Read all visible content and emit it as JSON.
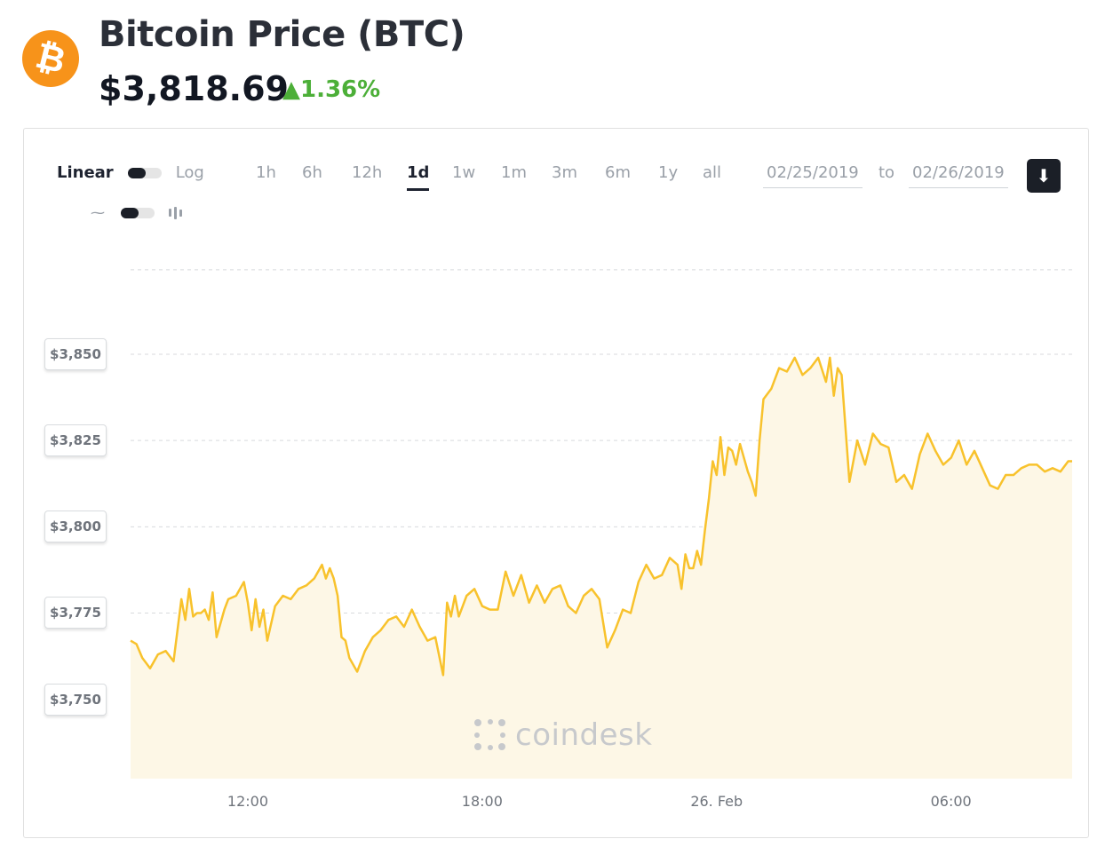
{
  "header": {
    "logo_symbol": "₿",
    "logo_color": "#f7931a",
    "title": "Bitcoin Price (BTC)",
    "price": "$3,818.69",
    "change": "▲1.36%",
    "change_color": "#4caf38"
  },
  "controls": {
    "scale_linear": "Linear",
    "scale_log": "Log",
    "ranges": [
      "1h",
      "6h",
      "12h",
      "1d",
      "1w",
      "1m",
      "3m",
      "6m",
      "1y",
      "all"
    ],
    "active_range": "1d",
    "date_from": "02/25/2019",
    "date_to_label": "to",
    "date_to": "02/26/2019",
    "download_icon": "download-icon"
  },
  "watermark": "coindesk",
  "chart_data": {
    "type": "area",
    "line_color": "#f8c22c",
    "fill_color": "#fdf7e6",
    "grid": "dashed horizontal",
    "y_ticks": [
      3750,
      3775,
      3800,
      3825,
      3850
    ],
    "y_tick_labels": [
      "$3,750",
      "$3,775",
      "$3,800",
      "$3,825",
      "$3,850"
    ],
    "ylim": [
      3727,
      3876
    ],
    "x_tick_labels": [
      "12:00",
      "18:00",
      "26. Feb",
      "06:00"
    ],
    "x_ticks": [
      3,
      9,
      15,
      21
    ],
    "xlim": [
      0,
      24.1
    ],
    "series": [
      {
        "x": [
          0.0,
          0.15,
          0.3,
          0.5,
          0.7,
          0.9,
          1.1,
          1.3,
          1.4,
          1.5,
          1.6,
          1.7,
          1.8,
          1.9,
          2.0,
          2.1,
          2.2,
          2.3,
          2.4,
          2.5,
          2.7,
          2.9,
          3.0,
          3.1,
          3.2,
          3.3,
          3.4,
          3.5,
          3.7,
          3.9,
          4.1,
          4.3,
          4.5,
          4.7,
          4.9,
          5.0,
          5.1,
          5.2,
          5.3,
          5.4,
          5.5,
          5.6,
          5.8,
          6.0,
          6.2,
          6.4,
          6.6,
          6.8,
          7.0,
          7.2,
          7.4,
          7.6,
          7.8,
          8.0,
          8.1,
          8.2,
          8.3,
          8.4,
          8.5,
          8.6,
          8.8,
          9.0,
          9.2,
          9.4,
          9.6,
          9.8,
          10.0,
          10.2,
          10.4,
          10.6,
          10.8,
          11.0,
          11.2,
          11.4,
          11.6,
          11.8,
          12.0,
          12.2,
          12.4,
          12.6,
          12.8,
          13.0,
          13.2,
          13.4,
          13.6,
          13.8,
          14.0,
          14.1,
          14.2,
          14.3,
          14.4,
          14.5,
          14.6,
          14.7,
          14.8,
          14.9,
          15.0,
          15.1,
          15.2,
          15.3,
          15.4,
          15.5,
          15.6,
          15.8,
          15.9,
          16.0,
          16.1,
          16.2,
          16.4,
          16.6,
          16.8,
          17.0,
          17.2,
          17.4,
          17.6,
          17.8,
          17.9,
          18.0,
          18.1,
          18.2,
          18.4,
          18.6,
          18.8,
          19.0,
          19.2,
          19.4,
          19.6,
          19.8,
          20.0,
          20.2,
          20.4,
          20.6,
          20.8,
          21.0,
          21.2,
          21.4,
          21.6,
          21.8,
          22.0,
          22.2,
          22.4,
          22.6,
          22.8,
          23.0,
          23.2,
          23.4,
          23.6,
          23.8,
          24.0,
          24.1
        ],
        "y": [
          3767,
          3766,
          3762,
          3759,
          3763,
          3764,
          3761,
          3779,
          3773,
          3782,
          3774,
          3775,
          3775,
          3776,
          3773,
          3781,
          3768,
          3772,
          3776,
          3779,
          3780,
          3784,
          3778,
          3770,
          3779,
          3771,
          3776,
          3767,
          3777,
          3780,
          3779,
          3782,
          3783,
          3785,
          3789,
          3785,
          3788,
          3785,
          3780,
          3768,
          3767,
          3762,
          3758,
          3764,
          3768,
          3770,
          3773,
          3774,
          3771,
          3776,
          3771,
          3767,
          3768,
          3757,
          3778,
          3774,
          3780,
          3774,
          3777,
          3780,
          3782,
          3777,
          3776,
          3776,
          3787,
          3780,
          3786,
          3778,
          3783,
          3778,
          3782,
          3783,
          3777,
          3775,
          3780,
          3782,
          3779,
          3765,
          3770,
          3776,
          3775,
          3784,
          3789,
          3785,
          3786,
          3791,
          3789,
          3782,
          3792,
          3788,
          3788,
          3793,
          3789,
          3799,
          3808,
          3819,
          3815,
          3826,
          3815,
          3823,
          3822,
          3818,
          3824,
          3816,
          3813,
          3809,
          3825,
          3837,
          3840,
          3846,
          3845,
          3849,
          3844,
          3846,
          3849,
          3842,
          3849,
          3838,
          3846,
          3844,
          3813,
          3825,
          3818,
          3827,
          3824,
          3823,
          3813,
          3815,
          3811,
          3821,
          3827,
          3822,
          3818,
          3820,
          3825,
          3818,
          3822,
          3817,
          3812,
          3811,
          3815,
          3815,
          3817,
          3818,
          3818,
          3816,
          3817,
          3816,
          3819,
          3819
        ]
      }
    ]
  }
}
